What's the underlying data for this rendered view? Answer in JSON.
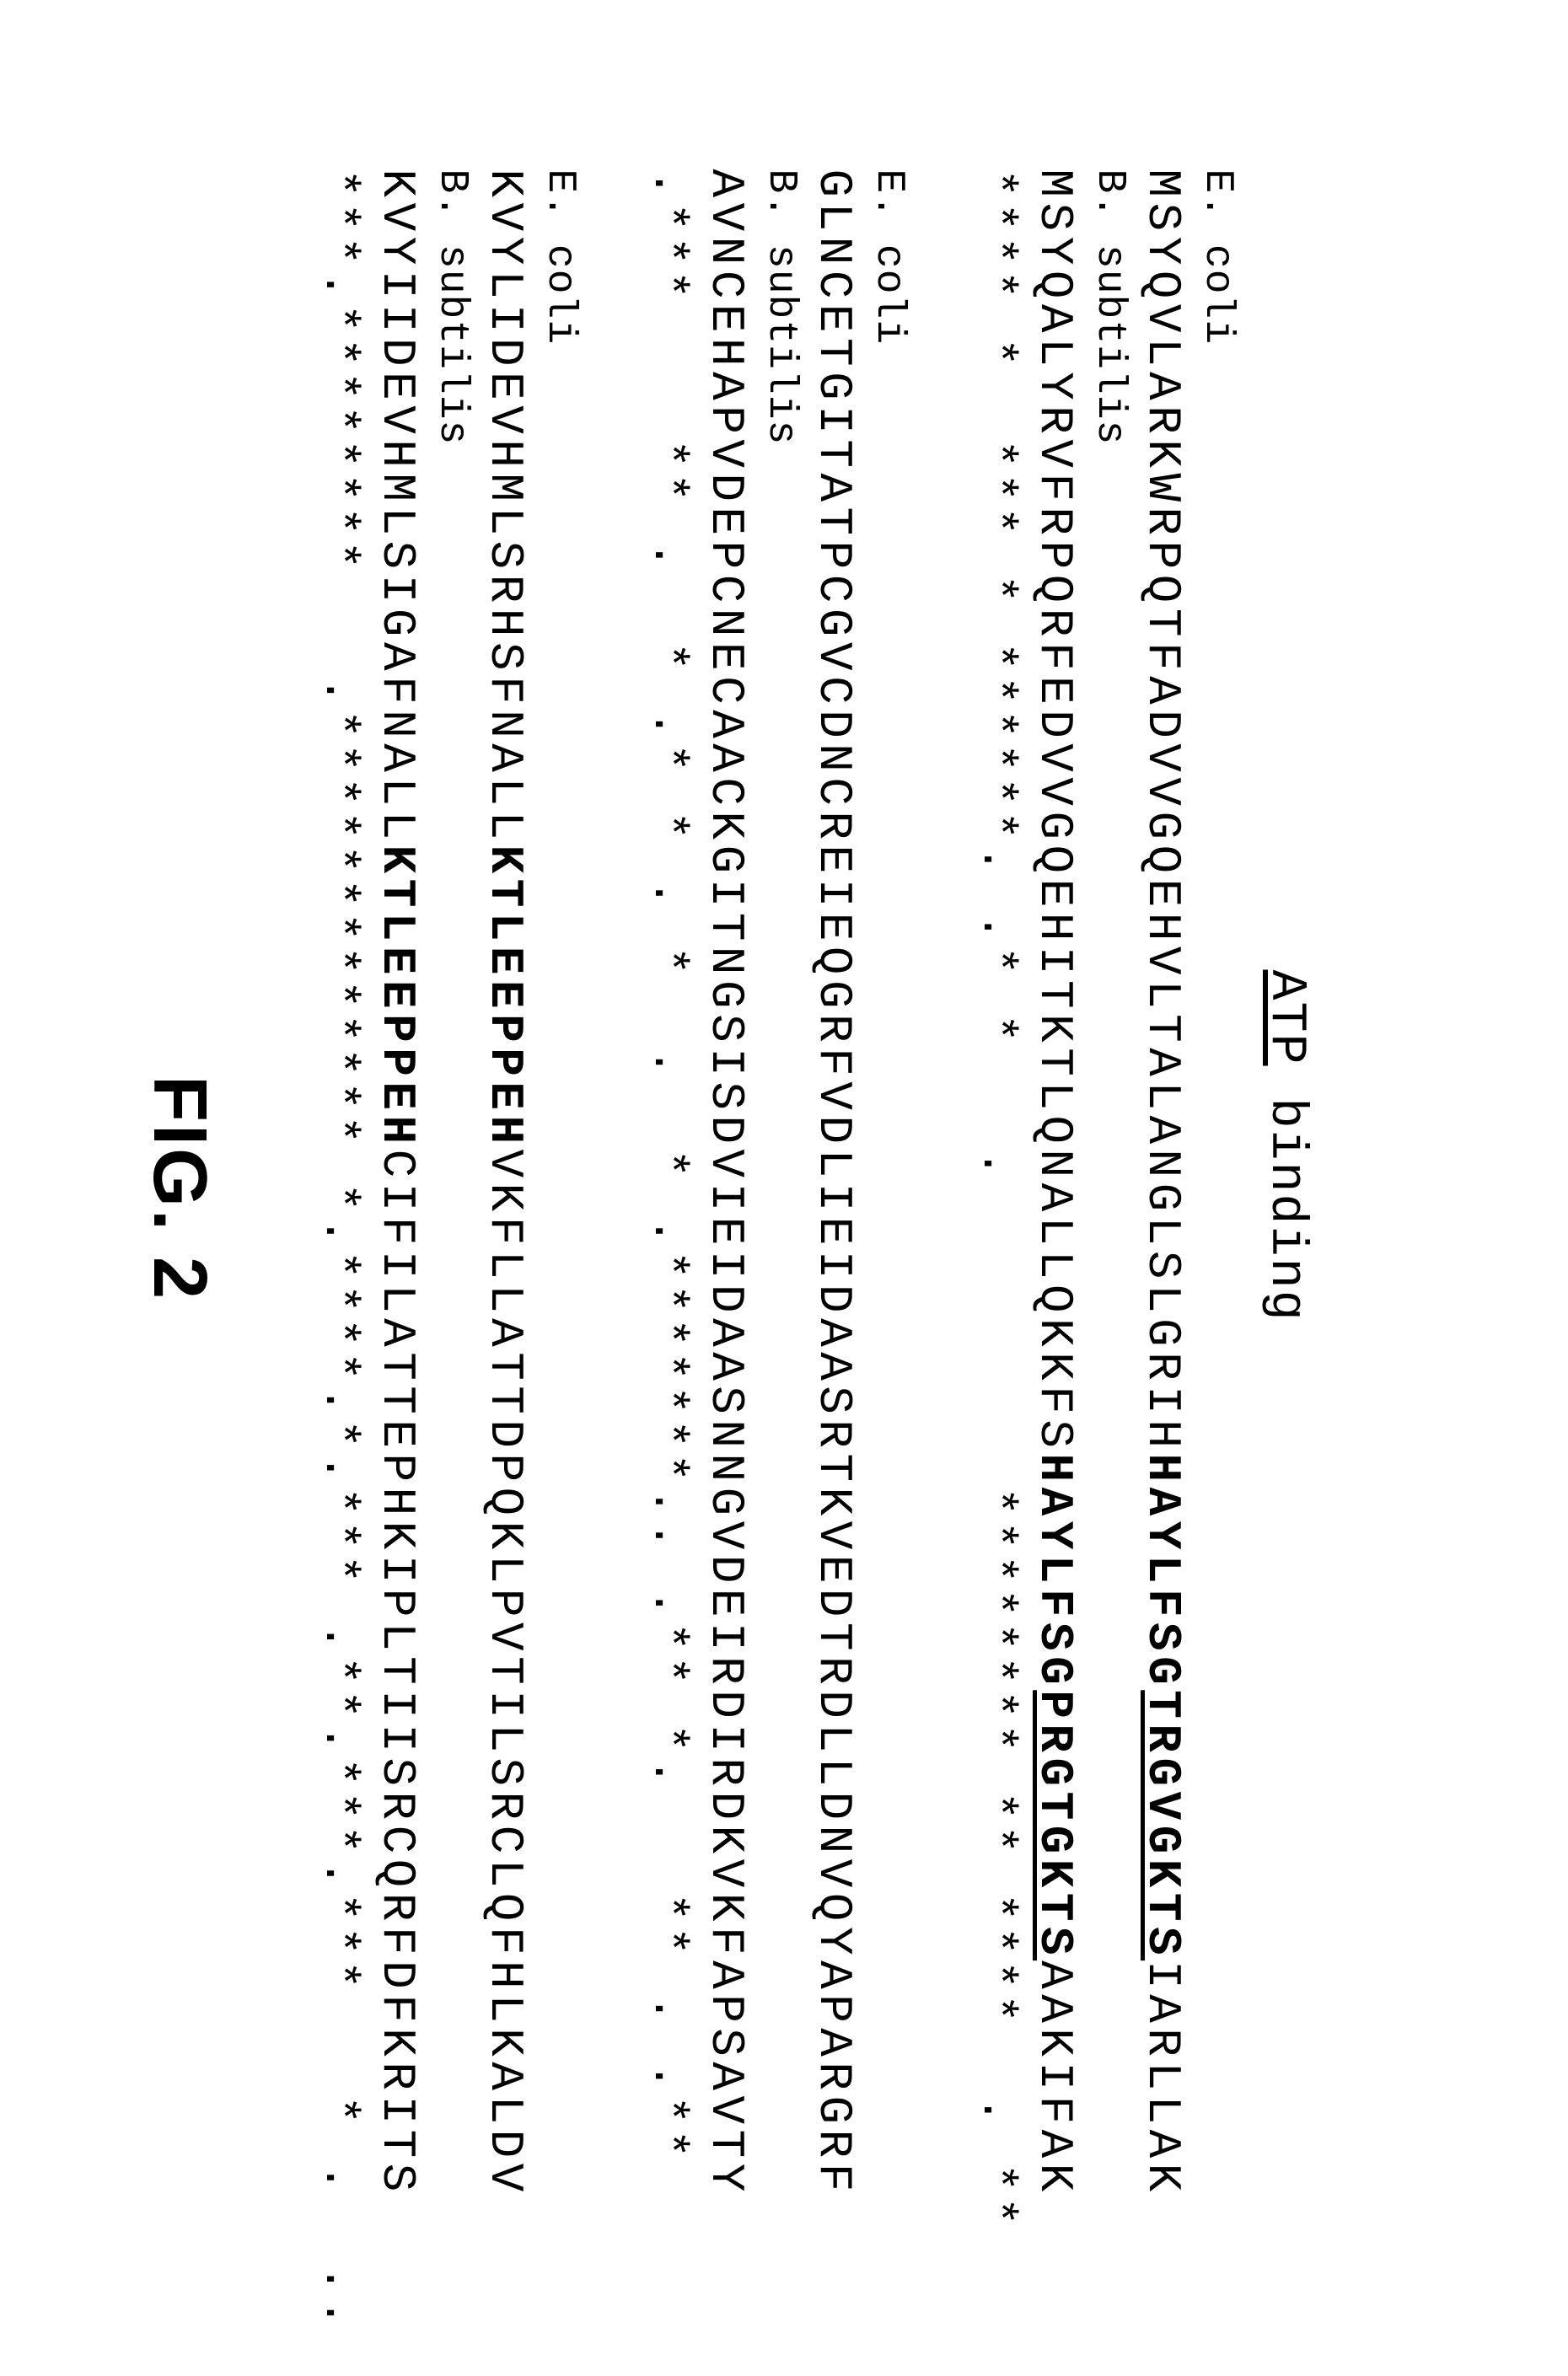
{
  "header_label_prefix": "ATP",
  "header_label_suffix": " binding",
  "figure_label": "FIG. 2",
  "blocks": [
    {
      "org1": "E. coli",
      "seq1_plain": "MSYQVLARKWRPQTFADVVGQEHVLTALANGLSLGRIH",
      "seq1_bold": "HAYLFSG",
      "seq1_bold_ul": "TRGVGKTS",
      "seq1_tail": "IARLLAK",
      "org2": "B. subtilis",
      "seq2_plain": "MSYQALYRVFRPQRFEDVVGQEHITKTLQNALLQKKFS",
      "seq2_bold": "HAYLFSG",
      "seq2_bold_ul": "PRGTGKTS",
      "seq2_tail": "AAKIFAK",
      "consensus": "**** *  *** * ******. .* *   .         ******** ** ****  . **"
    },
    {
      "org1": "E. coli",
      "seq1_plain": "GLNCETGITATPCGVCDNCREIEQGRFVDLIEIDAASRTKVEDTRDLLDNVQYAPARGRF",
      "seq1_bold": "",
      "seq1_bold_ul": "",
      "seq1_tail": "",
      "org2": "B. subtilis",
      "seq2_plain": "AVNCEHAPVDEPCNECAACKGITNGSISDVIEIDAASNNGVDEIRDIRDKVKFAPSAVTY",
      "seq2_bold": "",
      "seq2_bold_ul": "",
      "seq2_tail": "",
      "consensus": ".***    ** .  * .* * . *  .  * .*******.. .** *.   ** . .**"
    },
    {
      "org1": "E. coli",
      "seq1_plain": "KVYLIDEVHMLSRHSFNALL",
      "seq1_bold": "KTLEEPPEH",
      "seq1_bold_ul": "",
      "seq1_tail": "VKFLLATTDPQKLPVTILSRCLQFHLKALDV",
      "org2": "B. subtilis",
      "seq2_plain": "KVYIIDEVHMLSIGAFNALL",
      "seq2_bold": "KTLEEPPEH",
      "seq2_bold_ul": "",
      "seq2_tail": "CIFILATTEPHKIPLTIISRCQRFDFKRITS",
      "consensus": "***.********   .************* *.****.*.*** .**.***.***   * .  .."
    }
  ]
}
